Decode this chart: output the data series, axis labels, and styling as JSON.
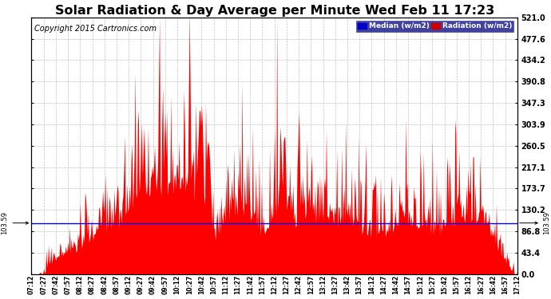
{
  "title": "Solar Radiation & Day Average per Minute Wed Feb 11 17:23",
  "copyright": "Copyright 2015 Cartronics.com",
  "median_value": 103.59,
  "median_label": "103.59",
  "yticks": [
    0.0,
    43.4,
    86.8,
    130.2,
    173.7,
    217.1,
    260.5,
    303.9,
    347.3,
    390.8,
    434.2,
    477.6,
    521.0
  ],
  "ymax": 521.0,
  "ymin": 0.0,
  "radiation_color": "#FF0000",
  "median_line_color": "#0000FF",
  "background_color": "#FFFFFF",
  "grid_color": "#BBBBBB",
  "title_fontsize": 11.5,
  "copyright_fontsize": 7,
  "tick_fontsize": 7,
  "xtick_labels": [
    "07:12",
    "07:27",
    "07:42",
    "07:57",
    "08:12",
    "08:27",
    "08:42",
    "08:57",
    "09:12",
    "09:27",
    "09:42",
    "09:57",
    "10:12",
    "10:27",
    "10:42",
    "10:57",
    "11:12",
    "11:27",
    "11:42",
    "11:57",
    "12:12",
    "12:27",
    "12:42",
    "12:57",
    "13:12",
    "13:27",
    "13:42",
    "13:57",
    "14:12",
    "14:27",
    "14:42",
    "14:57",
    "15:12",
    "15:27",
    "15:42",
    "15:57",
    "16:12",
    "16:27",
    "16:42",
    "16:57",
    "17:12"
  ]
}
